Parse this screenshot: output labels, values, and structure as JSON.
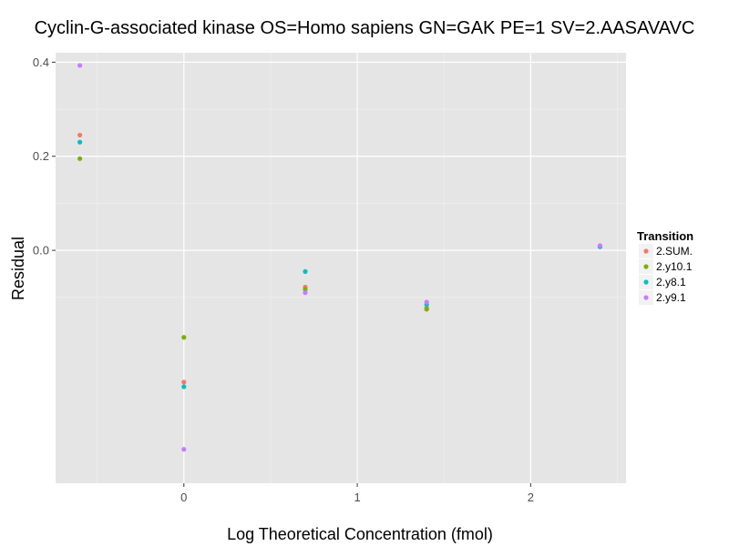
{
  "chart_data": {
    "type": "scatter",
    "title": "Cyclin-G-associated kinase OS=Homo sapiens GN=GAK PE=1 SV=2.AASAVAVC",
    "xlabel": "Log Theoretical Concentration (fmol)",
    "ylabel": "Residual",
    "xlim": [
      -0.74,
      2.55
    ],
    "ylim": [
      -0.495,
      0.42
    ],
    "x_ticks": [
      0,
      1,
      2
    ],
    "x_tick_labels": [
      "0",
      "1",
      "2"
    ],
    "y_ticks": [
      0.0,
      0.2,
      0.4
    ],
    "y_tick_labels": [
      "0.0",
      "0.2",
      "0.4"
    ],
    "grid": true,
    "legend": {
      "title": "Transition",
      "position": "right"
    },
    "series": [
      {
        "name": "2.SUM.",
        "color": "#F8766D",
        "points": [
          [
            -0.6,
            0.245
          ],
          [
            0.0,
            -0.28
          ],
          [
            0.7,
            -0.078
          ],
          [
            1.4,
            -0.122
          ],
          [
            2.4,
            0.008
          ]
        ]
      },
      {
        "name": "2.y10.1",
        "color": "#7CAE00",
        "points": [
          [
            -0.6,
            0.195
          ],
          [
            0.0,
            -0.185
          ],
          [
            0.7,
            -0.083
          ],
          [
            1.4,
            -0.125
          ],
          [
            2.4,
            0.008
          ]
        ]
      },
      {
        "name": "2.y8.1",
        "color": "#00BFC4",
        "points": [
          [
            -0.6,
            0.23
          ],
          [
            0.0,
            -0.29
          ],
          [
            0.7,
            -0.045
          ],
          [
            1.4,
            -0.115
          ],
          [
            2.4,
            0.008
          ]
        ]
      },
      {
        "name": "2.y9.1",
        "color": "#C77CFF",
        "points": [
          [
            -0.6,
            0.393
          ],
          [
            0.0,
            -0.423
          ],
          [
            0.7,
            -0.09
          ],
          [
            1.4,
            -0.11
          ],
          [
            2.4,
            0.01
          ]
        ]
      }
    ]
  }
}
